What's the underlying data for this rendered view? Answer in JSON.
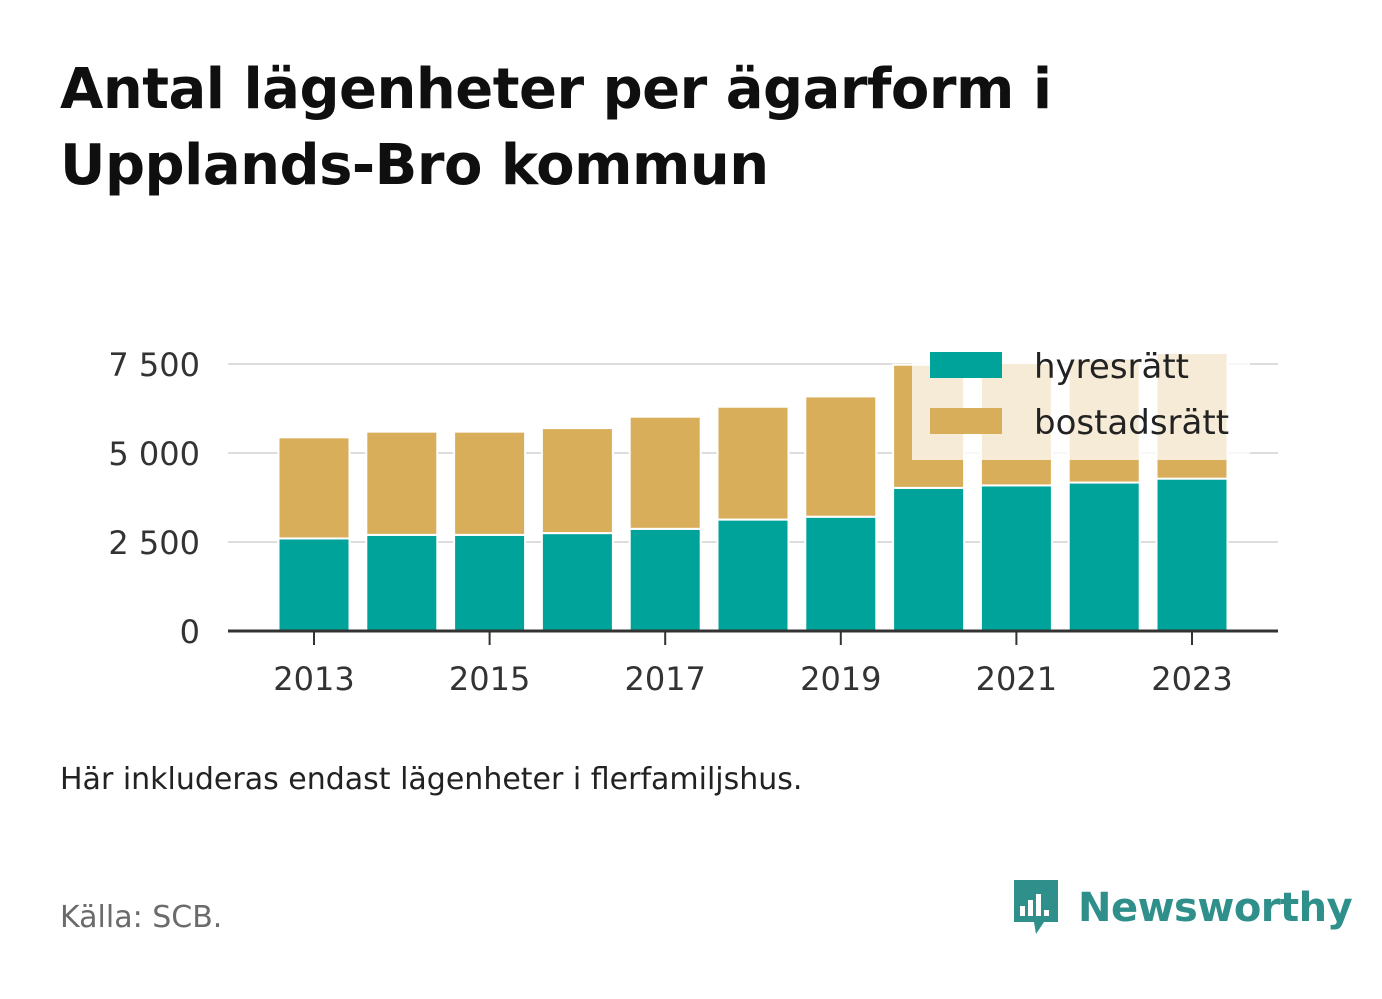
{
  "title": "Antal lägenheter per ägarform i Upplands-Bro kommun",
  "note": "Här inkluderas endast lägenheter i flerfamiljshus.",
  "source": "Källa: SCB.",
  "brand": {
    "name": "Newsworthy",
    "icon": "bar-chart-speech-bubble-icon",
    "color": "#2f8f8a"
  },
  "colors": {
    "hyresratt": "#00a39a",
    "bostadsratt": "#d9ae5b",
    "axis": "#333333",
    "grid": "#dddddd"
  },
  "chart_data": {
    "type": "bar",
    "stacked": true,
    "x": [
      2013,
      2014,
      2015,
      2016,
      2017,
      2018,
      2019,
      2020,
      2021,
      2022,
      2023
    ],
    "x_tick_labels": [
      "2013",
      "2015",
      "2017",
      "2019",
      "2021",
      "2023"
    ],
    "y_tick_values": [
      0,
      2500,
      5000,
      7500
    ],
    "y_tick_labels": [
      "0",
      "2 500",
      "5 000",
      "7 500"
    ],
    "ylim": [
      0,
      7500
    ],
    "grid": true,
    "legend_position": "top-right",
    "series": [
      {
        "name": "hyresrätt",
        "values": [
          2600,
          2700,
          2700,
          2750,
          2870,
          3130,
          3210,
          4020,
          4090,
          4170,
          4280
        ]
      },
      {
        "name": "bostadsrätt",
        "values": [
          2840,
          2900,
          2900,
          2950,
          3150,
          3170,
          3380,
          3460,
          3440,
          3480,
          3530
        ]
      }
    ]
  }
}
